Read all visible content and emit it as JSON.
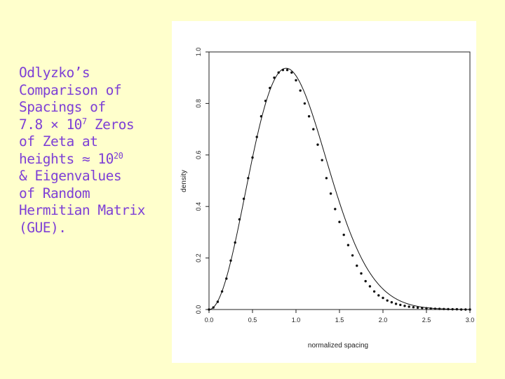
{
  "caption": {
    "lines": [
      {
        "text": "Odlyzko’s"
      },
      {
        "text": "Comparison of"
      },
      {
        "text": "Spacings of"
      },
      {
        "text": "7.8 × 10",
        "sup": "7",
        "after": " Zeros"
      },
      {
        "text": "of Zeta at"
      },
      {
        "text": "heights ≈ 10",
        "sup": "20",
        "after": ""
      },
      {
        "text": "& Eigenvalues"
      },
      {
        "text": "of Random"
      },
      {
        "text": "Hermitian Matrix"
      },
      {
        "text": "(GUE)."
      }
    ],
    "color": "#7d3fd6"
  },
  "page_background": "#ffffcc",
  "chart_data": {
    "type": "line",
    "xlabel": "normalized spacing",
    "ylabel": "density",
    "xlim": [
      0,
      3.0
    ],
    "ylim": [
      0,
      1.0
    ],
    "xticks": [
      "0.0",
      "0.5",
      "1.0",
      "1.5",
      "2.0",
      "2.5",
      "3.0"
    ],
    "yticks": [
      "0.0",
      "0.2",
      "0.4",
      "0.6",
      "0.8",
      "1.0"
    ],
    "grid": false,
    "curve": {
      "name": "",
      "description_function": "GUE Wigner surmise (32/pi^2) s^2 exp(-4 s^2 / pi)",
      "points_x": [
        0,
        0.1,
        0.2,
        0.3,
        0.4,
        0.5,
        0.6,
        0.7,
        0.8,
        0.9,
        1.0,
        1.1,
        1.2,
        1.3,
        1.4,
        1.5,
        1.6,
        1.7,
        1.8,
        1.9,
        2.0,
        2.2,
        2.4,
        2.6,
        2.8,
        3.0
      ],
      "points_y": [
        0,
        0.03,
        0.12,
        0.26,
        0.43,
        0.59,
        0.75,
        0.86,
        0.92,
        0.93,
        0.89,
        0.8,
        0.7,
        0.58,
        0.45,
        0.34,
        0.25,
        0.17,
        0.11,
        0.07,
        0.045,
        0.02,
        0.008,
        0.003,
        0.001,
        0.0
      ]
    },
    "dots": {
      "name": "",
      "x": [
        0.0,
        0.05,
        0.1,
        0.15,
        0.2,
        0.25,
        0.3,
        0.35,
        0.4,
        0.45,
        0.5,
        0.55,
        0.6,
        0.65,
        0.7,
        0.75,
        0.8,
        0.85,
        0.9,
        0.95,
        1.0,
        1.05,
        1.1,
        1.15,
        1.2,
        1.25,
        1.3,
        1.35,
        1.4,
        1.45,
        1.5,
        1.55,
        1.6,
        1.65,
        1.7,
        1.75,
        1.8,
        1.85,
        1.9,
        1.95,
        2.0,
        2.05,
        2.1,
        2.15,
        2.2,
        2.25,
        2.3,
        2.35,
        2.4,
        2.45,
        2.5,
        2.55,
        2.6,
        2.65,
        2.7,
        2.75,
        2.8,
        2.85,
        2.9,
        2.95,
        3.0
      ],
      "y": [
        0.0,
        0.008,
        0.03,
        0.07,
        0.12,
        0.19,
        0.26,
        0.35,
        0.43,
        0.51,
        0.59,
        0.67,
        0.75,
        0.81,
        0.86,
        0.9,
        0.92,
        0.93,
        0.93,
        0.92,
        0.89,
        0.85,
        0.8,
        0.75,
        0.7,
        0.64,
        0.58,
        0.51,
        0.45,
        0.39,
        0.34,
        0.29,
        0.25,
        0.21,
        0.17,
        0.14,
        0.11,
        0.09,
        0.07,
        0.055,
        0.045,
        0.035,
        0.028,
        0.022,
        0.018,
        0.014,
        0.011,
        0.009,
        0.007,
        0.006,
        0.005,
        0.004,
        0.003,
        0.0025,
        0.002,
        0.0015,
        0.001,
        0.001,
        0.0,
        0.0,
        0.0
      ]
    }
  }
}
